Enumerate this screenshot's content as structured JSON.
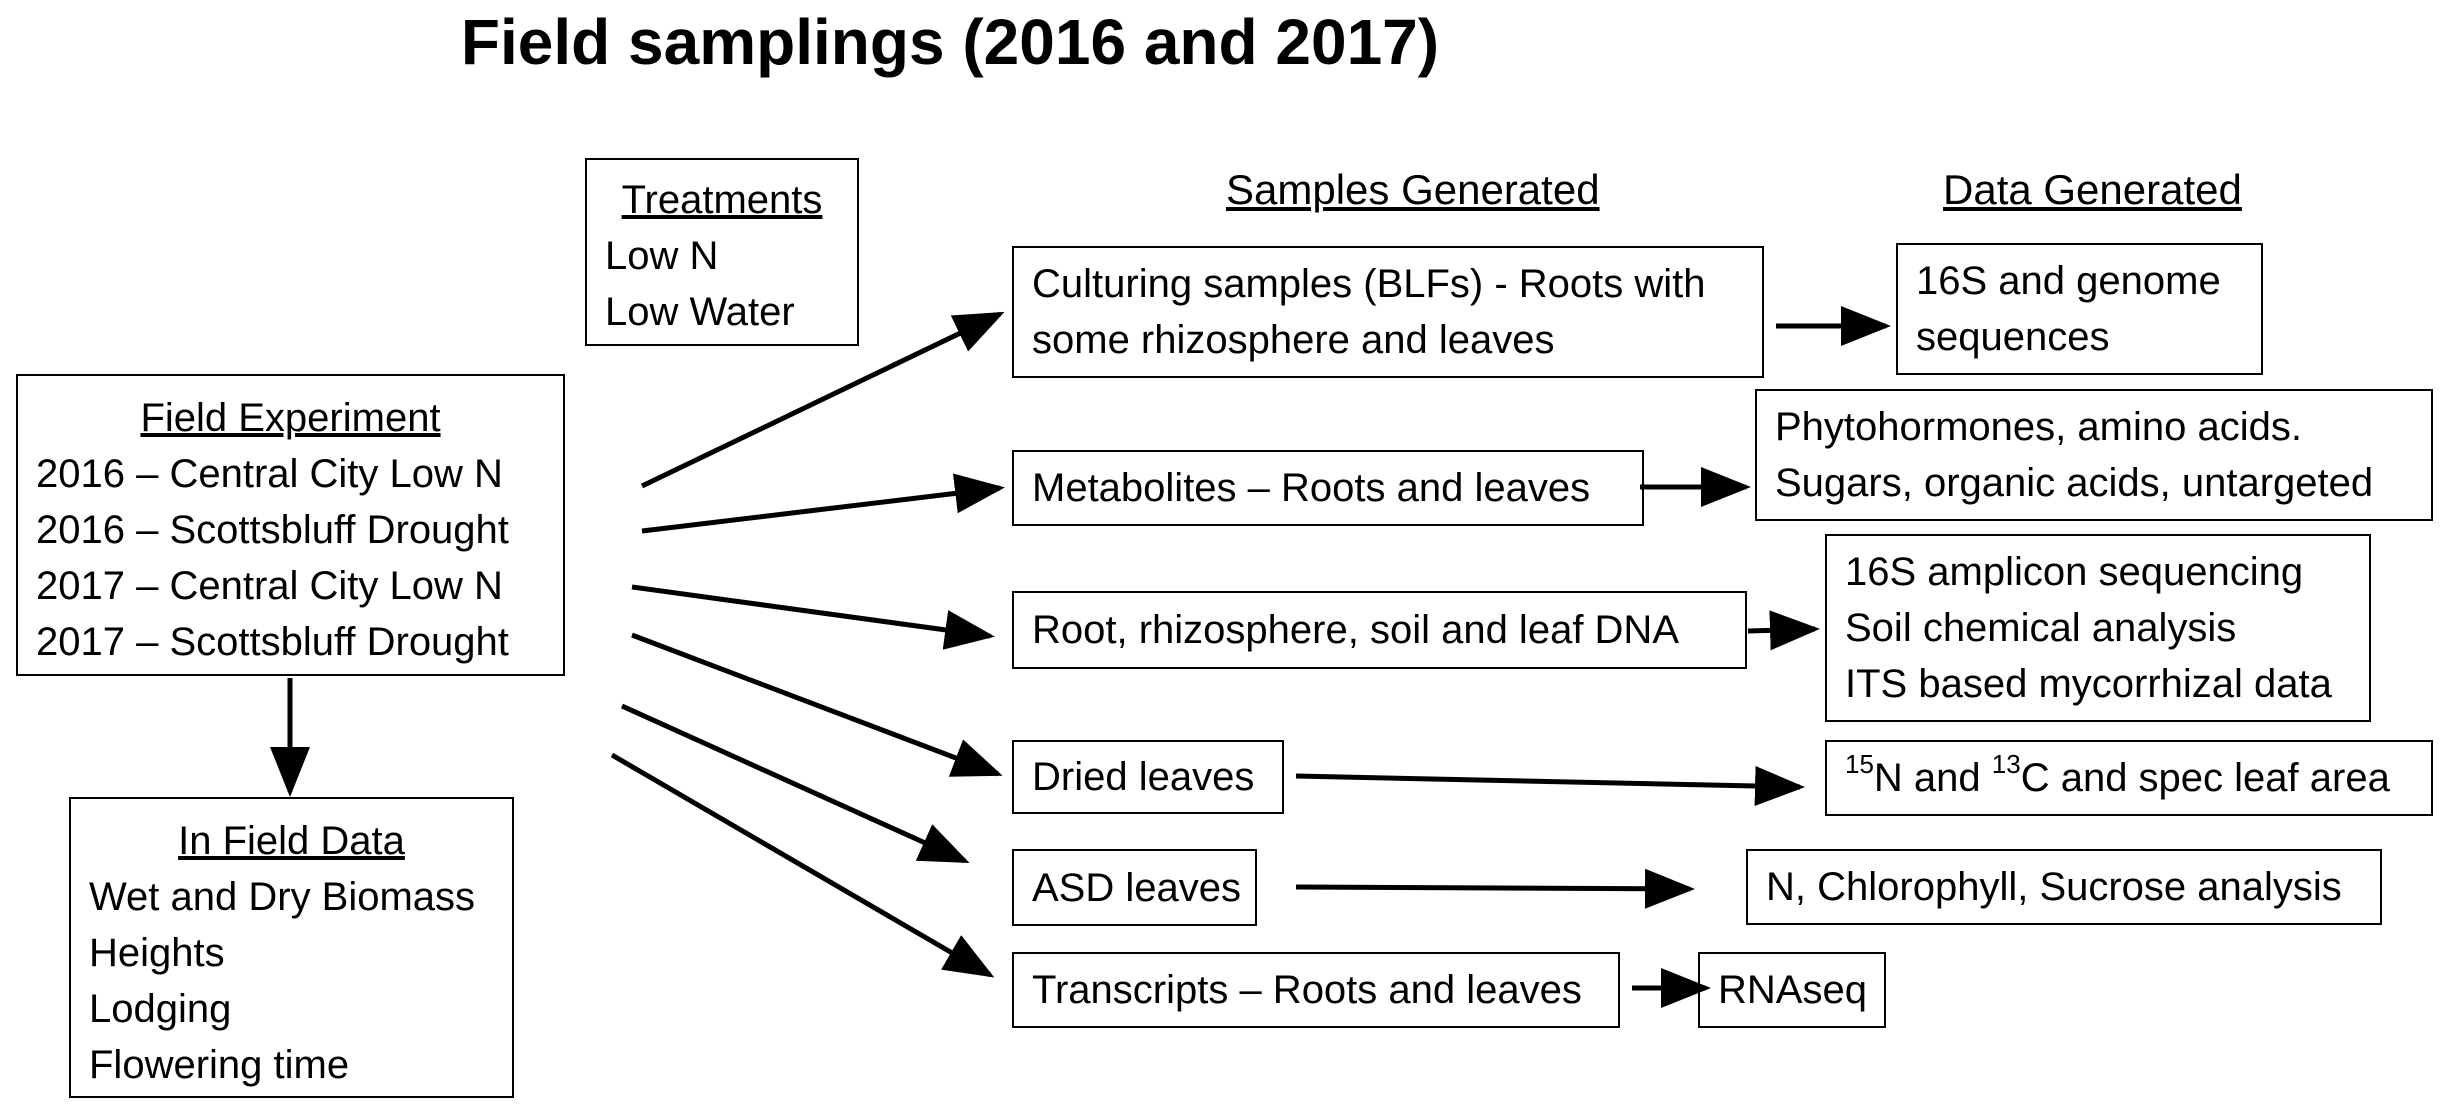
{
  "title": "Field samplings (2016 and 2017)",
  "headers": {
    "samples": "Samples Generated",
    "data": "Data Generated"
  },
  "treatments": {
    "heading": "Treatments",
    "items": [
      "Low N",
      "Low Water"
    ]
  },
  "field_experiment": {
    "heading": "Field Experiment",
    "items": [
      "2016 – Central City Low N",
      "2016 – Scottsbluff Drought",
      "2017 – Central City Low N",
      "2017 – Scottsbluff Drought"
    ]
  },
  "in_field_data": {
    "heading": "In Field Data",
    "items": [
      "Wet and Dry Biomass",
      "Heights",
      "Lodging",
      "Flowering time"
    ]
  },
  "samples": [
    {
      "lines": [
        "Culturing samples (BLFs) - Roots with",
        "some rhizosphere and leaves"
      ]
    },
    {
      "lines": [
        "Metabolites – Roots and leaves"
      ]
    },
    {
      "lines": [
        "Root, rhizosphere, soil and leaf DNA"
      ]
    },
    {
      "lines": [
        "Dried leaves"
      ]
    },
    {
      "lines": [
        "ASD leaves"
      ]
    },
    {
      "lines": [
        "Transcripts – Roots and leaves"
      ]
    }
  ],
  "data_generated": [
    {
      "lines": [
        "16S and genome",
        "sequences"
      ]
    },
    {
      "lines": [
        "Phytohormones, amino acids.",
        "Sugars, organic acids, untargeted"
      ]
    },
    {
      "lines": [
        "16S amplicon sequencing",
        "Soil chemical analysis",
        "ITS based mycorrhizal data"
      ]
    },
    {
      "isotope": {
        "sup1": "15",
        "t1": "N and ",
        "sup2": "13",
        "t2": "C and spec leaf area"
      }
    },
    {
      "lines": [
        "N, Chlorophyll, Sucrose analysis"
      ]
    },
    {
      "lines": [
        "RNAseq"
      ]
    }
  ]
}
